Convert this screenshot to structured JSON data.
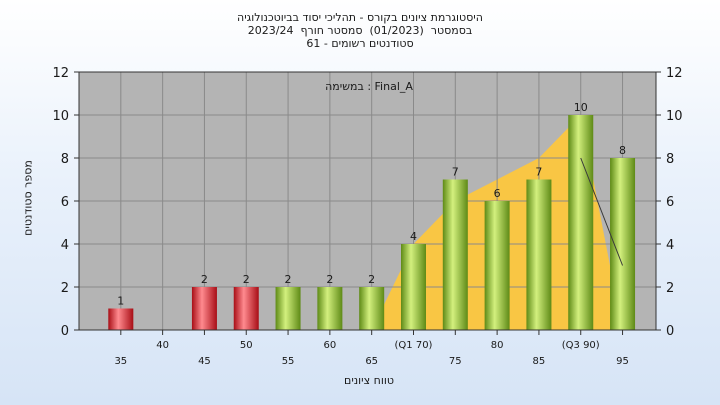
{
  "header": {
    "lines": [
      "היסטוגרמת ציונים בקורס - תהליכי יסוד בביוטכנולוגיה",
      "בסמסטר  (01/2023)  סמסטר חורף  2023/24",
      "סטודנטים רשומים - 61"
    ]
  },
  "chart_data": {
    "type": "bar",
    "categories": [
      "35",
      "40",
      "45",
      "50",
      "55",
      "60",
      "65",
      "(Q1 70)",
      "75",
      "80",
      "85",
      "(Q3 90)",
      "95"
    ],
    "values": [
      1,
      0,
      2,
      2,
      2,
      2,
      2,
      4,
      7,
      6,
      7,
      10,
      8
    ],
    "value_labels": [
      "1",
      "",
      "2",
      "2",
      "2",
      "2",
      "2",
      "4",
      "7",
      "6",
      "7",
      "10",
      "8"
    ],
    "bar_colors": [
      "#e8353c",
      "#e8353c",
      "#e8353c",
      "#e8353c",
      "#9ccb3c",
      "#9ccb3c",
      "#9ccb3c",
      "#9ccb3c",
      "#9ccb3c",
      "#9ccb3c",
      "#9ccb3c",
      "#9ccb3c",
      "#9ccb3c"
    ],
    "yticks": [
      "0",
      "2",
      "4",
      "6",
      "8",
      "10",
      "12"
    ],
    "ylim": [
      0,
      12
    ],
    "ylabel": "מספר סטודנטים",
    "xlabel": "טווח ציונים",
    "annotation": "במשימה : Final_A",
    "quartile_area": {
      "color": "#f9c644",
      "values": [
        0,
        0,
        0,
        0,
        0,
        0,
        0,
        4,
        6,
        7,
        8,
        10,
        0
      ]
    },
    "trend_line": {
      "x_index": [
        11,
        12
      ],
      "values": [
        8,
        3
      ]
    },
    "grid": true,
    "colors": {
      "plot_bg": "#b4b4b4",
      "grid": "#8a8a8a"
    }
  }
}
